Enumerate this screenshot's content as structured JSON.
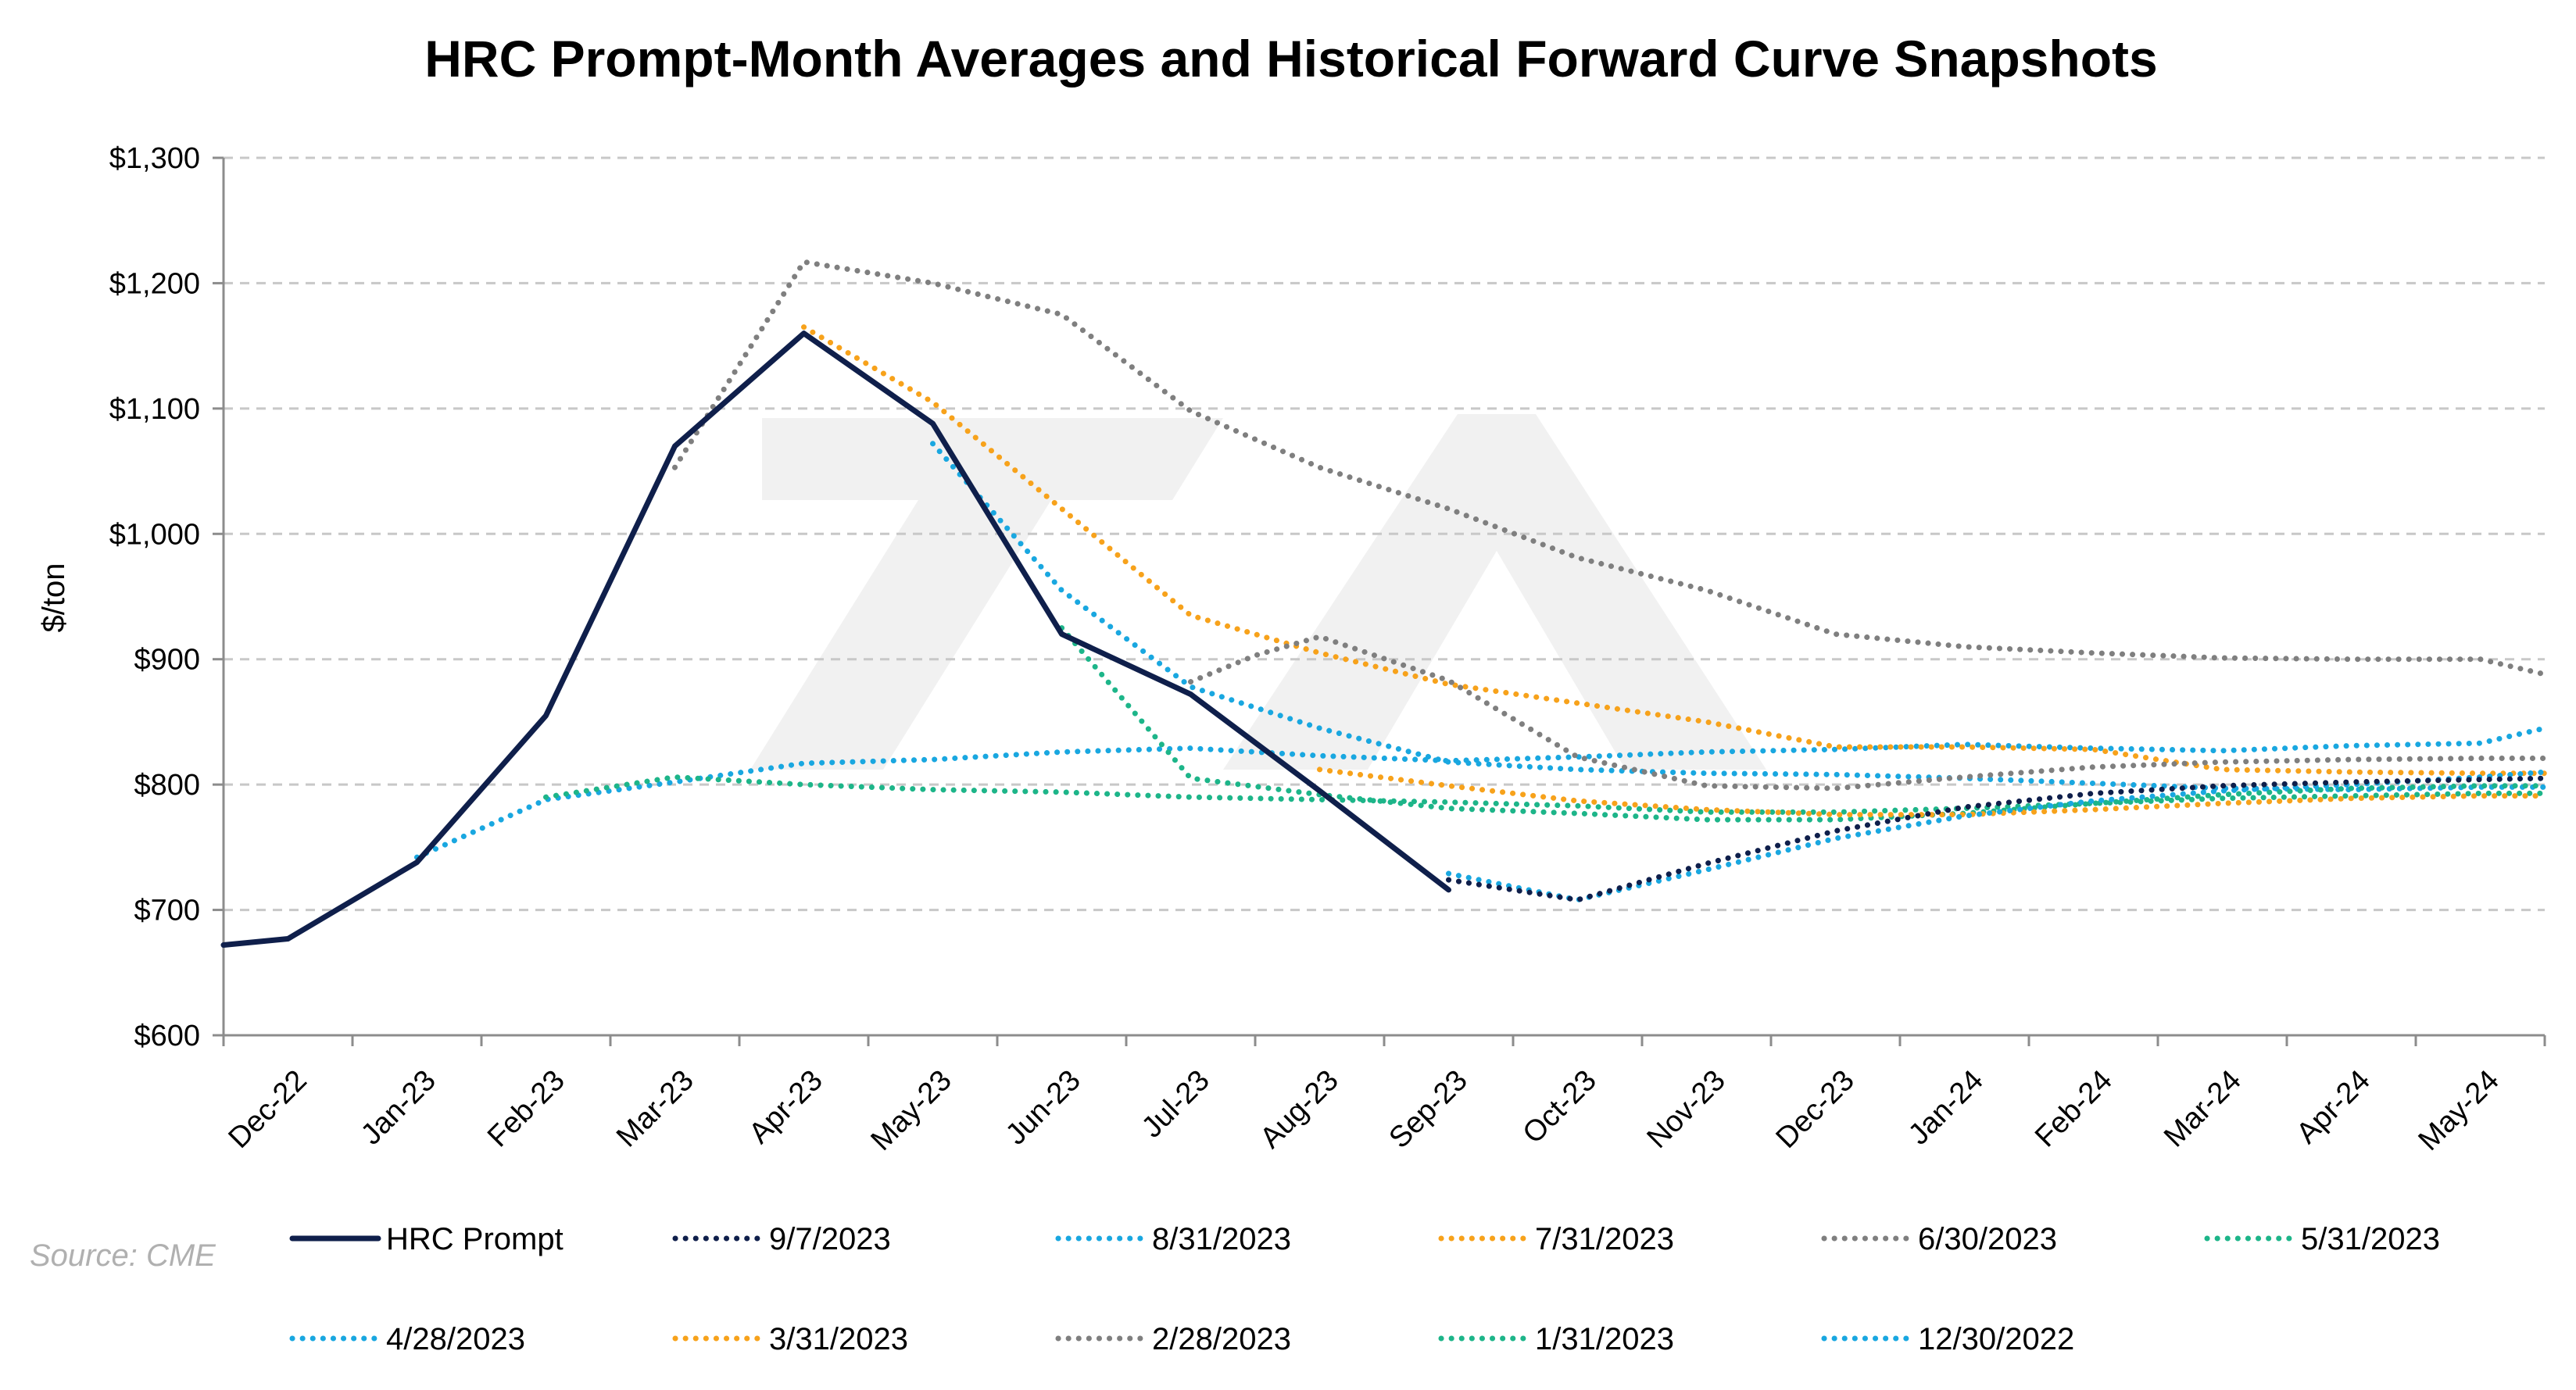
{
  "chart_data": {
    "type": "line",
    "title": "HRC Prompt-Month Averages and Historical Forward Curve Snapshots",
    "ylabel": "$/ton",
    "ylim": [
      600,
      1300
    ],
    "yticks": [
      600,
      700,
      800,
      900,
      1000,
      1100,
      1200,
      1300
    ],
    "ytick_labels": [
      "$600",
      "$700",
      "$800",
      "$900",
      "$1,000",
      "$1,100",
      "$1,200",
      "$1,300"
    ],
    "categories": [
      "Dec-22",
      "Jan-23",
      "Feb-23",
      "Mar-23",
      "Apr-23",
      "May-23",
      "Jun-23",
      "Jul-23",
      "Aug-23",
      "Sep-23",
      "Oct-23",
      "Nov-23",
      "Dec-23",
      "Jan-24",
      "Feb-24",
      "Mar-24",
      "Apr-24",
      "May-24"
    ],
    "grid": true,
    "legend_position": "bottom",
    "source": "Source: CME",
    "series": [
      {
        "name": "HRC Prompt",
        "style": "solid",
        "color": "#0f1f4b",
        "points": [
          [
            0,
            672
          ],
          [
            0.5,
            677
          ],
          [
            1.5,
            738
          ],
          [
            2.5,
            855
          ],
          [
            3.5,
            1070
          ],
          [
            4.5,
            1160
          ],
          [
            5.5,
            1088
          ],
          [
            6.5,
            920
          ],
          [
            7.5,
            872
          ],
          [
            8.5,
            795
          ],
          [
            9.5,
            716
          ]
        ]
      },
      {
        "name": "9/7/2023",
        "style": "dotted",
        "color": "#0f1f4b",
        "points": [
          [
            9.5,
            724
          ],
          [
            10.5,
            708
          ],
          [
            11.5,
            737
          ],
          [
            12.5,
            763
          ],
          [
            13.5,
            782
          ],
          [
            14.5,
            793
          ],
          [
            15.5,
            799
          ],
          [
            16.5,
            802
          ],
          [
            17.5,
            804
          ],
          [
            18,
            805
          ]
        ]
      },
      {
        "name": "8/31/2023",
        "style": "dotted",
        "color": "#19a7e0",
        "points": [
          [
            9.5,
            729
          ],
          [
            10.5,
            708
          ],
          [
            11.5,
            732
          ],
          [
            12.5,
            757
          ],
          [
            13.5,
            775
          ],
          [
            14.5,
            787
          ],
          [
            15.5,
            795
          ],
          [
            16.5,
            800
          ],
          [
            17.5,
            806
          ],
          [
            18,
            810
          ]
        ]
      },
      {
        "name": "7/31/2023",
        "style": "dotted",
        "color": "#f7a21b",
        "points": [
          [
            8.5,
            812
          ],
          [
            9.5,
            799
          ],
          [
            10.5,
            787
          ],
          [
            11.5,
            780
          ],
          [
            12.5,
            776
          ],
          [
            13.5,
            776
          ],
          [
            14.5,
            780
          ],
          [
            15.5,
            785
          ],
          [
            16.5,
            789
          ],
          [
            17.5,
            791
          ],
          [
            18,
            791
          ]
        ]
      },
      {
        "name": "6/30/2023",
        "style": "dotted",
        "color": "#7f7f7f",
        "points": [
          [
            7.5,
            882
          ],
          [
            8,
            903
          ],
          [
            8.5,
            918
          ],
          [
            9.5,
            883
          ],
          [
            10.5,
            822
          ],
          [
            11.5,
            799
          ],
          [
            12.5,
            797
          ],
          [
            13.5,
            806
          ],
          [
            14.5,
            814
          ],
          [
            15.5,
            818
          ],
          [
            16.5,
            820
          ],
          [
            17.5,
            821
          ],
          [
            18,
            821
          ]
        ]
      },
      {
        "name": "5/31/2023",
        "style": "dotted",
        "color": "#1db589",
        "points": [
          [
            6.5,
            925
          ],
          [
            7.5,
            805
          ],
          [
            8.5,
            792
          ],
          [
            9.5,
            781
          ],
          [
            10.5,
            777
          ],
          [
            11.5,
            772
          ],
          [
            12.5,
            772
          ],
          [
            13.5,
            777
          ],
          [
            14.5,
            785
          ],
          [
            15.5,
            792
          ],
          [
            16.5,
            797
          ],
          [
            17.5,
            799
          ],
          [
            18,
            799
          ]
        ]
      },
      {
        "name": "4/28/2023",
        "style": "dotted",
        "color": "#19a7e0",
        "points": [
          [
            5.5,
            1072
          ],
          [
            6.5,
            955
          ],
          [
            7.5,
            878
          ],
          [
            8.5,
            845
          ],
          [
            9.5,
            818
          ],
          [
            10.5,
            812
          ],
          [
            11.5,
            809
          ],
          [
            12.5,
            808
          ],
          [
            13.5,
            805
          ],
          [
            14.5,
            801
          ],
          [
            15.5,
            797
          ],
          [
            16.5,
            796
          ],
          [
            17.5,
            798
          ],
          [
            18,
            798
          ]
        ]
      },
      {
        "name": "3/31/2023",
        "style": "dotted",
        "color": "#f7a21b",
        "points": [
          [
            4.5,
            1165
          ],
          [
            5.5,
            1105
          ],
          [
            6.5,
            1020
          ],
          [
            7.5,
            935
          ],
          [
            8.5,
            905
          ],
          [
            9.5,
            880
          ],
          [
            10.5,
            865
          ],
          [
            11.5,
            850
          ],
          [
            12.5,
            830
          ],
          [
            13.5,
            830
          ],
          [
            14.5,
            828
          ],
          [
            15.5,
            812
          ],
          [
            16.5,
            810
          ],
          [
            17.5,
            809
          ],
          [
            18,
            809
          ]
        ]
      },
      {
        "name": "2/28/2023",
        "style": "dotted",
        "color": "#7f7f7f",
        "points": [
          [
            3.5,
            1053
          ],
          [
            4.5,
            1217
          ],
          [
            5.5,
            1200
          ],
          [
            6.5,
            1175
          ],
          [
            7.5,
            1098
          ],
          [
            8.5,
            1053
          ],
          [
            9.5,
            1020
          ],
          [
            10.5,
            981
          ],
          [
            11.5,
            955
          ],
          [
            12.5,
            920
          ],
          [
            13.5,
            910
          ],
          [
            14.5,
            905
          ],
          [
            15.5,
            901
          ],
          [
            16.5,
            900
          ],
          [
            17.5,
            900
          ],
          [
            18,
            888
          ]
        ]
      },
      {
        "name": "1/31/2023",
        "style": "dotted",
        "color": "#1db589",
        "points": [
          [
            2.5,
            790
          ],
          [
            3.5,
            806
          ],
          [
            4.5,
            800
          ],
          [
            5.5,
            796
          ],
          [
            6.5,
            794
          ],
          [
            7.5,
            790
          ],
          [
            8.5,
            788
          ],
          [
            9.5,
            786
          ],
          [
            10.5,
            783
          ],
          [
            11.5,
            778
          ],
          [
            12.5,
            778
          ],
          [
            13.5,
            781
          ],
          [
            14.5,
            785
          ],
          [
            15.5,
            789
          ],
          [
            16.5,
            791
          ],
          [
            17.5,
            793
          ],
          [
            18,
            793
          ]
        ]
      },
      {
        "name": "12/30/2022",
        "style": "dotted",
        "color": "#19a7e0",
        "points": [
          [
            1.5,
            742
          ],
          [
            2.5,
            788
          ],
          [
            3.5,
            802
          ],
          [
            4.5,
            817
          ],
          [
            5.5,
            820
          ],
          [
            6.5,
            826
          ],
          [
            7.5,
            829
          ],
          [
            8.5,
            823
          ],
          [
            9.5,
            819
          ],
          [
            10.5,
            822
          ],
          [
            11.5,
            826
          ],
          [
            12.5,
            828
          ],
          [
            13.5,
            832
          ],
          [
            14.5,
            829
          ],
          [
            15.5,
            827
          ],
          [
            16.5,
            831
          ],
          [
            17.5,
            833
          ],
          [
            18,
            845
          ]
        ]
      }
    ]
  }
}
